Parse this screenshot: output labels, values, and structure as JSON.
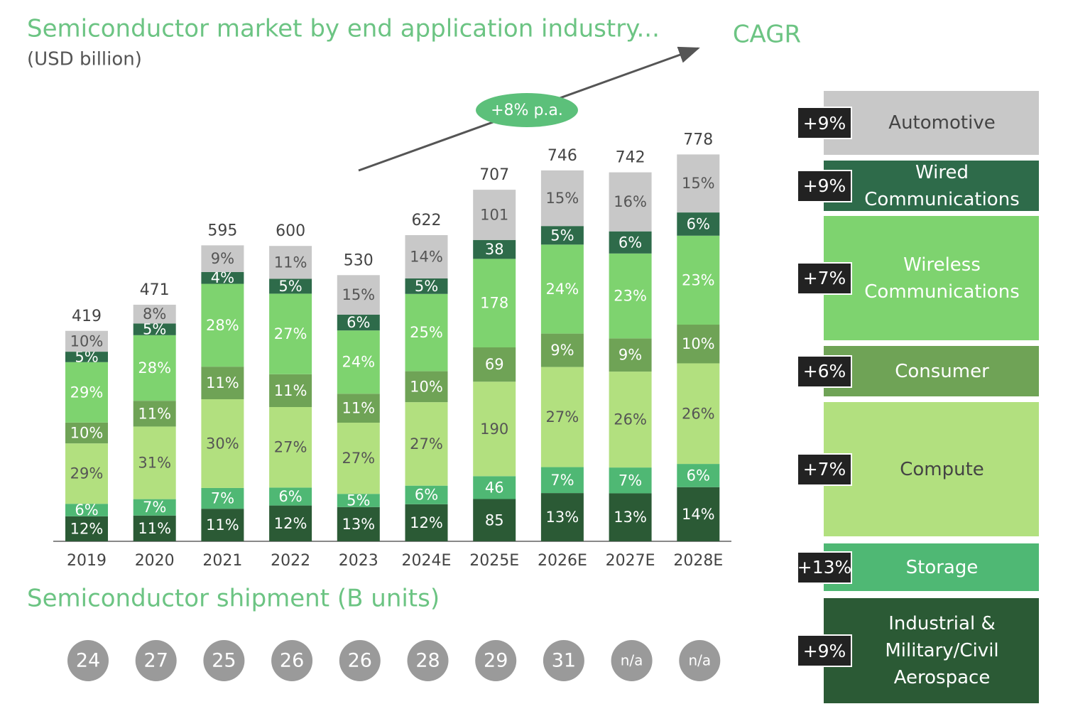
{
  "chart_data": {
    "type": "bar",
    "title": "Semiconductor market by end application industry...",
    "subtitle": "(USD billion)",
    "cagr_title": "CAGR",
    "trend_label": "+8% p.a.",
    "categories": [
      "2019",
      "2020",
      "2021",
      "2022",
      "2023",
      "2024E",
      "2025E",
      "2026E",
      "2027E",
      "2028E"
    ],
    "totals": [
      419,
      471,
      595,
      600,
      530,
      622,
      707,
      746,
      742,
      778
    ],
    "series": [
      {
        "name": "Industrial & Military/Civil Aerospace",
        "cagr": "+9%",
        "color": "#2b5a35",
        "values": [
          50.3,
          51.8,
          65.5,
          72,
          68.9,
          74.6,
          85,
          97.0,
          96.5,
          108.9
        ],
        "value_labels": [
          "12%",
          "11%",
          "11%",
          "12%",
          "13%",
          "12%",
          "85",
          "13%",
          "13%",
          "14%"
        ]
      },
      {
        "name": "Storage",
        "cagr": "+13%",
        "color": "#4fb874",
        "values": [
          25.1,
          33.0,
          41.7,
          36,
          26.5,
          37.3,
          46,
          52.2,
          51.9,
          46.7
        ],
        "value_labels": [
          "6%",
          "7%",
          "7%",
          "6%",
          "5%",
          "6%",
          "46",
          "7%",
          "7%",
          "6%"
        ]
      },
      {
        "name": "Compute",
        "cagr": "+7%",
        "color": "#b2e07f",
        "values": [
          121.5,
          146.0,
          178.5,
          162,
          143.1,
          167.9,
          190,
          201.4,
          192.9,
          202.3
        ],
        "value_labels": [
          "29%",
          "31%",
          "30%",
          "27%",
          "27%",
          "27%",
          "190",
          "27%",
          "26%",
          "26%"
        ]
      },
      {
        "name": "Consumer",
        "cagr": "+6%",
        "color": "#6fa356",
        "values": [
          41.9,
          51.8,
          65.5,
          66,
          58.3,
          62.2,
          69,
          67.1,
          66.8,
          77.8
        ],
        "value_labels": [
          "10%",
          "11%",
          "11%",
          "11%",
          "11%",
          "10%",
          "69",
          "9%",
          "9%",
          "10%"
        ]
      },
      {
        "name": "Wireless Communications",
        "cagr": "+7%",
        "color": "#7ed36f",
        "values": [
          121.5,
          131.9,
          166.6,
          162,
          127.2,
          155.5,
          178,
          179.0,
          170.7,
          178.9
        ],
        "value_labels": [
          "29%",
          "28%",
          "28%",
          "27%",
          "24%",
          "25%",
          "178",
          "24%",
          "23%",
          "23%"
        ]
      },
      {
        "name": "Wired Communications",
        "cagr": "+9%",
        "color": "#2e6b4a",
        "values": [
          21.0,
          23.6,
          23.8,
          30,
          31.8,
          31.1,
          38,
          37.3,
          44.5,
          46.7
        ],
        "value_labels": [
          "5%",
          "5%",
          "4%",
          "5%",
          "6%",
          "5%",
          "38",
          "5%",
          "6%",
          "6%"
        ]
      },
      {
        "name": "Automotive",
        "cagr": "+9%",
        "color": "#c8c8c8",
        "values": [
          41.9,
          37.7,
          53.6,
          66,
          79.5,
          87.1,
          101,
          111.9,
          118.7,
          116.7
        ],
        "value_labels": [
          "10%",
          "8%",
          "9%",
          "11%",
          "15%",
          "14%",
          "101",
          "15%",
          "16%",
          "15%"
        ]
      }
    ],
    "shipment": {
      "title": "Semiconductor shipment (B units)",
      "values": [
        24,
        27,
        25,
        26,
        26,
        28,
        29,
        31,
        null,
        null
      ],
      "value_labels": [
        "24",
        "27",
        "25",
        "26",
        "26",
        "28",
        "29",
        "31",
        "n/a",
        "n/a"
      ]
    }
  }
}
